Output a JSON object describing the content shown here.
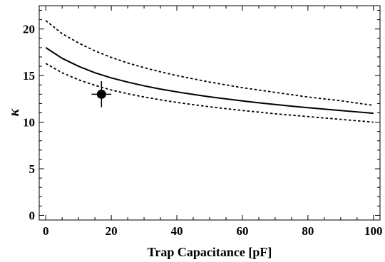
{
  "chart_data": {
    "type": "line",
    "title": "",
    "xlabel": "Trap Capacitance [pF]",
    "ylabel": "κ",
    "xlim": [
      -2,
      102
    ],
    "ylim": [
      -0.5,
      22.5
    ],
    "xticks": [
      0,
      20,
      40,
      60,
      80,
      100
    ],
    "yticks": [
      0,
      5,
      10,
      15,
      20
    ],
    "grid": false,
    "series": [
      {
        "style": "solid",
        "x": [
          0,
          5,
          10,
          15,
          20,
          25,
          30,
          35,
          40,
          45,
          50,
          55,
          60,
          65,
          70,
          75,
          80,
          85,
          90,
          95,
          100
        ],
        "y": [
          18.0,
          16.85,
          16.0,
          15.3,
          14.75,
          14.3,
          13.9,
          13.55,
          13.25,
          12.98,
          12.72,
          12.5,
          12.28,
          12.08,
          11.9,
          11.72,
          11.55,
          11.4,
          11.25,
          11.1,
          10.95
        ]
      },
      {
        "style": "dashed",
        "x": [
          0,
          5,
          10,
          15,
          20,
          25,
          30,
          35,
          40,
          45,
          50,
          55,
          60,
          65,
          70,
          75,
          80,
          85,
          90,
          95,
          100
        ],
        "y": [
          20.9,
          19.5,
          18.5,
          17.65,
          16.95,
          16.35,
          15.85,
          15.4,
          15.0,
          14.65,
          14.3,
          14.0,
          13.7,
          13.45,
          13.2,
          12.95,
          12.7,
          12.5,
          12.3,
          12.05,
          11.8
        ]
      },
      {
        "style": "dashed",
        "x": [
          0,
          5,
          10,
          15,
          20,
          25,
          30,
          35,
          40,
          45,
          50,
          55,
          60,
          65,
          70,
          75,
          80,
          85,
          90,
          95,
          100
        ],
        "y": [
          16.3,
          15.3,
          14.55,
          13.95,
          13.45,
          13.05,
          12.7,
          12.4,
          12.12,
          11.88,
          11.65,
          11.45,
          11.25,
          11.08,
          10.9,
          10.75,
          10.6,
          10.45,
          10.3,
          10.15,
          10.0
        ]
      }
    ],
    "points": [
      {
        "x": 17,
        "y": 13.0,
        "xerr": 3,
        "yerr": 1.4
      }
    ]
  }
}
